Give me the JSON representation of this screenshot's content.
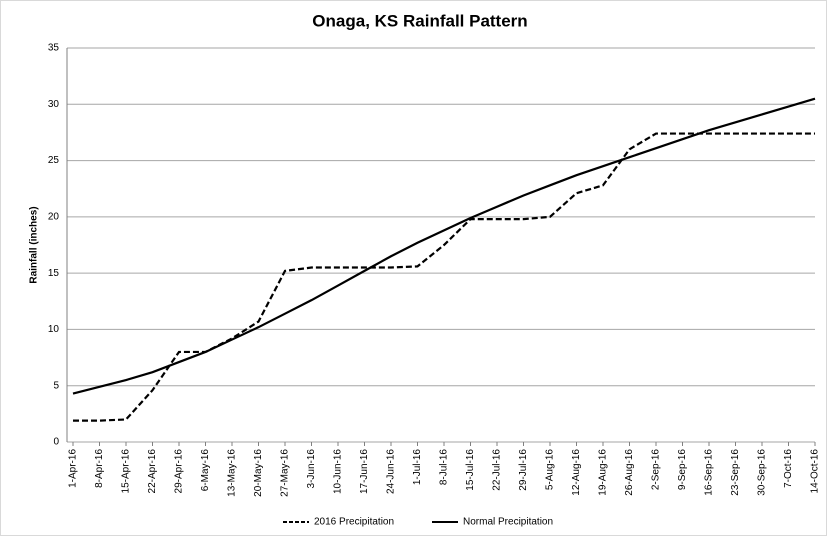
{
  "chart_data": {
    "type": "line",
    "title": "Onaga, KS Rainfall Pattern",
    "y_label": "Rainfall (inches)",
    "categories": [
      "1-Apr-16",
      "8-Apr-16",
      "15-Apr-16",
      "22-Apr-16",
      "29-Apr-16",
      "6-May-16",
      "13-May-16",
      "20-May-16",
      "27-May-16",
      "3-Jun-16",
      "10-Jun-16",
      "17-Jun-16",
      "24-Jun-16",
      "1-Jul-16",
      "8-Jul-16",
      "15-Jul-16",
      "22-Jul-16",
      "29-Jul-16",
      "5-Aug-16",
      "12-Aug-16",
      "19-Aug-16",
      "26-Aug-16",
      "2-Sep-16",
      "9-Sep-16",
      "16-Sep-16",
      "23-Sep-16",
      "30-Sep-16",
      "7-Oct-16",
      "14-Oct-16"
    ],
    "series": [
      {
        "name": "2016 Precipitation",
        "color": "#000000",
        "dashed": true,
        "values": [
          1.9,
          1.9,
          2.0,
          4.6,
          8.0,
          8.0,
          9.2,
          10.7,
          15.2,
          15.5,
          15.5,
          15.5,
          15.5,
          15.6,
          17.5,
          19.8,
          19.8,
          19.8,
          20.0,
          22.1,
          22.8,
          26.0,
          27.4,
          27.4,
          27.4,
          27.4,
          27.4,
          27.4,
          27.4
        ]
      },
      {
        "name": "Normal  Precipitation",
        "color": "#000000",
        "dashed": false,
        "values": [
          4.3,
          4.9,
          5.5,
          6.2,
          7.1,
          8.0,
          9.1,
          10.2,
          11.4,
          12.6,
          13.9,
          15.2,
          16.5,
          17.7,
          18.8,
          19.9,
          20.9,
          21.9,
          22.8,
          23.7,
          24.5,
          25.3,
          26.1,
          26.9,
          27.7,
          28.4,
          29.1,
          29.8,
          30.5
        ]
      }
    ],
    "ylim": [
      0,
      35
    ],
    "yticks": [
      0,
      5,
      10,
      15,
      20,
      25,
      30,
      35
    ],
    "grid": true,
    "legend": "bottom"
  }
}
